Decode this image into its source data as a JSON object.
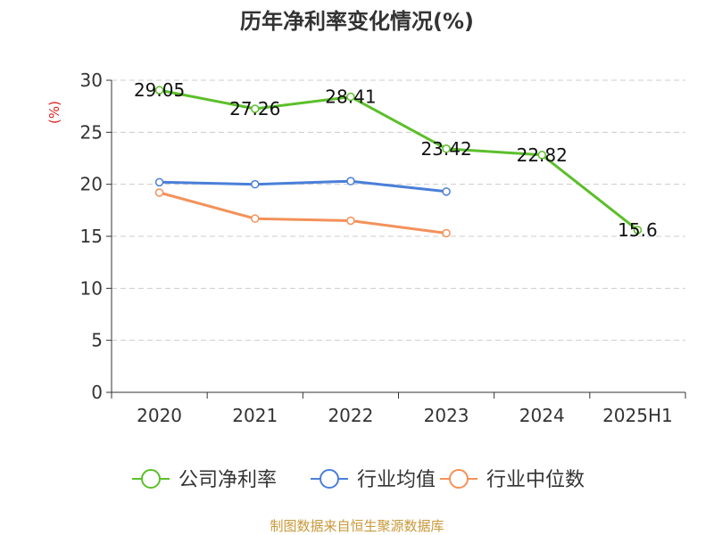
{
  "chart_data": {
    "type": "line",
    "title": "历年净利率变化情况(%)",
    "ylabel": "(%)",
    "xlabel": "",
    "categories": [
      "2020",
      "2021",
      "2022",
      "2023",
      "2024",
      "2025H1"
    ],
    "ylim": [
      0,
      30
    ],
    "yticks": [
      0,
      5,
      10,
      15,
      20,
      25,
      30
    ],
    "grid": true,
    "legend_position": "bottom",
    "series": [
      {
        "name": "公司净利率",
        "color": "#5cbf2a",
        "values": [
          29.05,
          27.26,
          28.41,
          23.42,
          22.82,
          15.6
        ],
        "labels": [
          "29.05",
          "27.26",
          "28.41",
          "23.42",
          "22.82",
          "15.6"
        ]
      },
      {
        "name": "行业均值",
        "color": "#4a7fd8",
        "values": [
          20.2,
          20.0,
          20.3,
          19.3,
          null,
          null
        ]
      },
      {
        "name": "行业中位数",
        "color": "#f4915a",
        "values": [
          19.2,
          16.7,
          16.5,
          15.3,
          null,
          null
        ]
      }
    ]
  },
  "footer": "制图数据来自恒生聚源数据库"
}
